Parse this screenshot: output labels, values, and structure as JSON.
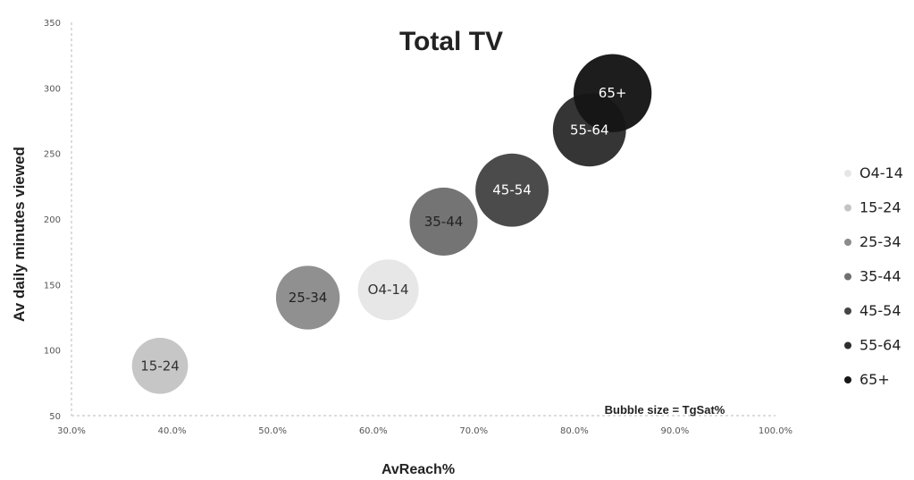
{
  "chart_data": {
    "type": "bubble",
    "title": "Total TV",
    "xlabel": "AvReach%",
    "ylabel": "Av daily minutes viewed",
    "annotation": "Bubble size = TgSat%",
    "xlim": [
      30,
      100
    ],
    "ylim": [
      50,
      350
    ],
    "x_ticks": [
      "30.0%",
      "40.0%",
      "50.0%",
      "60.0%",
      "70.0%",
      "80.0%",
      "90.0%",
      "100.0%"
    ],
    "y_ticks": [
      "50",
      "100",
      "150",
      "200",
      "250",
      "300",
      "350"
    ],
    "legend_position": "right",
    "series": [
      {
        "name": "O4-14",
        "label": "O4-14",
        "x": 61.5,
        "y": 146,
        "size": 1.0,
        "color": "#e6e6e6",
        "label_color": "#333333"
      },
      {
        "name": "15-24",
        "label": "15-24",
        "x": 38.8,
        "y": 88,
        "size": 0.85,
        "color": "#c4c4c4",
        "label_color": "#333333"
      },
      {
        "name": "25-34",
        "label": "25-34",
        "x": 53.5,
        "y": 140,
        "size": 1.1,
        "color": "#8c8c8c",
        "label_color": "#222222"
      },
      {
        "name": "35-44",
        "label": "35-44",
        "x": 67.0,
        "y": 198,
        "size": 1.25,
        "color": "#6f6f6f",
        "label_color": "#222222"
      },
      {
        "name": "45-54",
        "label": "45-54",
        "x": 73.8,
        "y": 222,
        "size": 1.45,
        "color": "#454545",
        "label_color": "#ffffff"
      },
      {
        "name": "55-64",
        "label": "55-64",
        "x": 81.5,
        "y": 268,
        "size": 1.45,
        "color": "#2e2e2e",
        "label_color": "#ffffff"
      },
      {
        "name": "65+",
        "label": "65+",
        "x": 83.8,
        "y": 296,
        "size": 1.65,
        "color": "#161616",
        "label_color": "#ffffff"
      }
    ]
  }
}
